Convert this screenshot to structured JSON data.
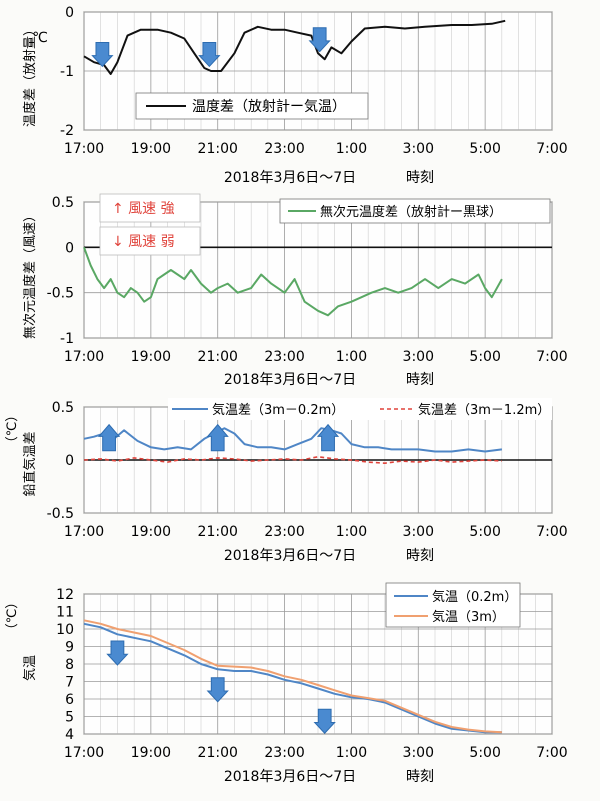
{
  "chart_data": [
    {
      "type": "line",
      "ylabel": "温度差（放射量）",
      "yunit": "℃",
      "ylim": [
        -2,
        0
      ],
      "yticks": [
        "-2",
        "-1",
        "0"
      ],
      "xticks": [
        "17:00",
        "19:00",
        "21:00",
        "23:00",
        "1:00",
        "3:00",
        "5:00",
        "7:00"
      ],
      "xlabel_date": "2018年3月6日～7日",
      "xlabel_time": "時刻",
      "grid": true,
      "legend_position": "bottom-center",
      "series": [
        {
          "name": "温度差（放射計ー気温）",
          "color": "#111111",
          "x": [
            17.0,
            17.3,
            17.6,
            17.8,
            18.0,
            18.3,
            18.7,
            19.2,
            19.6,
            20.0,
            20.3,
            20.6,
            20.8,
            21.1,
            21.5,
            21.8,
            22.2,
            22.6,
            23.0,
            23.4,
            23.8,
            24.0,
            24.2,
            24.4,
            24.7,
            25.0,
            25.4,
            26.0,
            26.6,
            27.2,
            28.0,
            28.6,
            29.2,
            29.6
          ],
          "y": [
            -0.75,
            -0.85,
            -0.9,
            -1.05,
            -0.85,
            -0.4,
            -0.3,
            -0.3,
            -0.35,
            -0.45,
            -0.7,
            -0.95,
            -1.0,
            -1.0,
            -0.7,
            -0.35,
            -0.25,
            -0.3,
            -0.3,
            -0.35,
            -0.4,
            -0.7,
            -0.8,
            -0.6,
            -0.7,
            -0.5,
            -0.28,
            -0.25,
            -0.28,
            -0.25,
            -0.22,
            -0.22,
            -0.2,
            -0.15
          ]
        }
      ],
      "annotations": [
        {
          "type": "arrow-down",
          "x": 17.55,
          "y": -0.55
        },
        {
          "type": "arrow-down",
          "x": 20.75,
          "y": -0.55
        },
        {
          "type": "arrow-down",
          "x": 24.05,
          "y": -0.3
        }
      ]
    },
    {
      "type": "line",
      "ylabel": "無次元温度差（風速）",
      "ylim": [
        -1,
        0.5
      ],
      "yticks": [
        "-1",
        "-0.5",
        "0",
        "0.5"
      ],
      "xticks": [
        "17:00",
        "19:00",
        "21:00",
        "23:00",
        "1:00",
        "3:00",
        "5:00",
        "7:00"
      ],
      "xlabel_date": "2018年3月6日～7日",
      "xlabel_time": "時刻",
      "grid": true,
      "legend_position": "top-right",
      "text_boxes": [
        "↑ 風速 強",
        "↓ 風速 弱"
      ],
      "series": [
        {
          "name": "無次元温度差（放射計ー黒球）",
          "color": "#5aa864",
          "x": [
            17.0,
            17.2,
            17.4,
            17.6,
            17.8,
            18.0,
            18.2,
            18.4,
            18.6,
            18.8,
            19.0,
            19.2,
            19.4,
            19.6,
            19.8,
            20.0,
            20.2,
            20.5,
            20.8,
            21.0,
            21.3,
            21.6,
            22.0,
            22.3,
            22.6,
            23.0,
            23.3,
            23.6,
            24.0,
            24.3,
            24.6,
            25.0,
            25.3,
            25.6,
            26.0,
            26.4,
            26.8,
            27.2,
            27.6,
            28.0,
            28.4,
            28.8,
            29.0,
            29.2,
            29.5
          ],
          "y": [
            0.0,
            -0.2,
            -0.35,
            -0.45,
            -0.35,
            -0.5,
            -0.55,
            -0.45,
            -0.5,
            -0.6,
            -0.55,
            -0.35,
            -0.3,
            -0.25,
            -0.3,
            -0.35,
            -0.25,
            -0.4,
            -0.5,
            -0.45,
            -0.4,
            -0.5,
            -0.45,
            -0.3,
            -0.4,
            -0.5,
            -0.35,
            -0.6,
            -0.7,
            -0.75,
            -0.65,
            -0.6,
            -0.55,
            -0.5,
            -0.45,
            -0.5,
            -0.45,
            -0.35,
            -0.45,
            -0.35,
            -0.4,
            -0.3,
            -0.45,
            -0.55,
            -0.35
          ]
        }
      ]
    },
    {
      "type": "line",
      "ylabel": "鉛直気温差",
      "yunit": "（℃）",
      "ylim": [
        -0.5,
        0.5
      ],
      "yticks": [
        "-0.5",
        "0",
        "0.5"
      ],
      "xticks": [
        "17:00",
        "19:00",
        "21:00",
        "23:00",
        "1:00",
        "3:00",
        "5:00",
        "7:00"
      ],
      "xlabel_date": "2018年3月6日～7日",
      "xlabel_time": "時刻",
      "grid": true,
      "legend_position": "top",
      "series": [
        {
          "name": "気温差（3m－0.2m）",
          "color": "#4f86c6",
          "style": "solid",
          "x": [
            17.0,
            17.3,
            17.6,
            17.9,
            18.2,
            18.6,
            19.0,
            19.4,
            19.8,
            20.2,
            20.6,
            20.9,
            21.2,
            21.5,
            21.8,
            22.2,
            22.6,
            23.0,
            23.4,
            23.8,
            24.1,
            24.4,
            24.7,
            25.0,
            25.4,
            25.8,
            26.2,
            26.6,
            27.0,
            27.5,
            28.0,
            28.5,
            29.0,
            29.5
          ],
          "y": [
            0.2,
            0.22,
            0.25,
            0.2,
            0.28,
            0.18,
            0.12,
            0.1,
            0.12,
            0.1,
            0.2,
            0.25,
            0.3,
            0.25,
            0.15,
            0.12,
            0.12,
            0.1,
            0.15,
            0.2,
            0.3,
            0.28,
            0.25,
            0.15,
            0.12,
            0.12,
            0.1,
            0.1,
            0.1,
            0.08,
            0.08,
            0.1,
            0.08,
            0.1
          ]
        },
        {
          "name": "気温差（3m－1.2m）",
          "color": "#e0443c",
          "style": "dashed",
          "x": [
            17.0,
            17.5,
            18.0,
            18.5,
            19.0,
            19.5,
            20.0,
            20.5,
            21.0,
            21.5,
            22.0,
            22.5,
            23.0,
            23.5,
            24.0,
            24.5,
            25.0,
            25.5,
            26.0,
            26.5,
            27.0,
            27.5,
            28.0,
            28.5,
            29.0,
            29.5
          ],
          "y": [
            0.0,
            0.01,
            -0.01,
            0.02,
            0.0,
            -0.02,
            0.01,
            0.0,
            0.02,
            0.01,
            -0.01,
            0.0,
            0.01,
            0.0,
            0.03,
            0.01,
            0.0,
            -0.02,
            -0.03,
            -0.01,
            -0.02,
            0.0,
            -0.02,
            -0.01,
            0.0,
            -0.01
          ]
        }
      ],
      "annotations": [
        {
          "type": "arrow-up",
          "x": 17.75,
          "y": 0.05
        },
        {
          "type": "arrow-up",
          "x": 21.0,
          "y": 0.05
        },
        {
          "type": "arrow-up",
          "x": 24.3,
          "y": 0.05
        }
      ]
    },
    {
      "type": "line",
      "ylabel": "気温",
      "yunit": "（℃）",
      "ylim": [
        4,
        12
      ],
      "yticks": [
        "4",
        "5",
        "6",
        "7",
        "8",
        "9",
        "10",
        "11",
        "12"
      ],
      "xticks": [
        "17:00",
        "19:00",
        "21:00",
        "23:00",
        "1:00",
        "3:00",
        "5:00",
        "7:00"
      ],
      "xlabel_date": "2018年3月6日～7日",
      "xlabel_time": "時刻",
      "grid": true,
      "legend_position": "top-right",
      "series": [
        {
          "name": "気温（0.2m）",
          "color": "#4f86c6",
          "x": [
            17.0,
            17.5,
            18.0,
            18.5,
            19.0,
            19.5,
            20.0,
            20.5,
            21.0,
            21.5,
            22.0,
            22.5,
            23.0,
            23.5,
            24.0,
            24.5,
            25.0,
            25.5,
            26.0,
            26.5,
            27.0,
            27.5,
            28.0,
            28.5,
            29.0,
            29.5
          ],
          "y": [
            10.3,
            10.1,
            9.7,
            9.5,
            9.3,
            8.9,
            8.5,
            8.0,
            7.7,
            7.6,
            7.6,
            7.4,
            7.1,
            6.9,
            6.6,
            6.3,
            6.1,
            6.0,
            5.8,
            5.4,
            5.0,
            4.6,
            4.3,
            4.2,
            4.1,
            4.1
          ]
        },
        {
          "name": "気温（3m）",
          "color": "#f0a070",
          "x": [
            17.0,
            17.5,
            18.0,
            18.5,
            19.0,
            19.5,
            20.0,
            20.5,
            21.0,
            21.5,
            22.0,
            22.5,
            23.0,
            23.5,
            24.0,
            24.5,
            25.0,
            25.5,
            26.0,
            26.5,
            27.0,
            27.5,
            28.0,
            28.5,
            29.0,
            29.5
          ],
          "y": [
            10.5,
            10.3,
            10.0,
            9.8,
            9.6,
            9.2,
            8.8,
            8.3,
            7.9,
            7.85,
            7.8,
            7.6,
            7.3,
            7.1,
            6.8,
            6.5,
            6.2,
            6.05,
            5.9,
            5.5,
            5.1,
            4.7,
            4.4,
            4.25,
            4.15,
            4.1
          ]
        }
      ],
      "annotations": [
        {
          "type": "arrow-down",
          "x": 18.0,
          "y": 9.2
        },
        {
          "type": "arrow-down",
          "x": 21.0,
          "y": 7.1
        },
        {
          "type": "arrow-down",
          "x": 24.2,
          "y": 5.3
        }
      ]
    }
  ]
}
